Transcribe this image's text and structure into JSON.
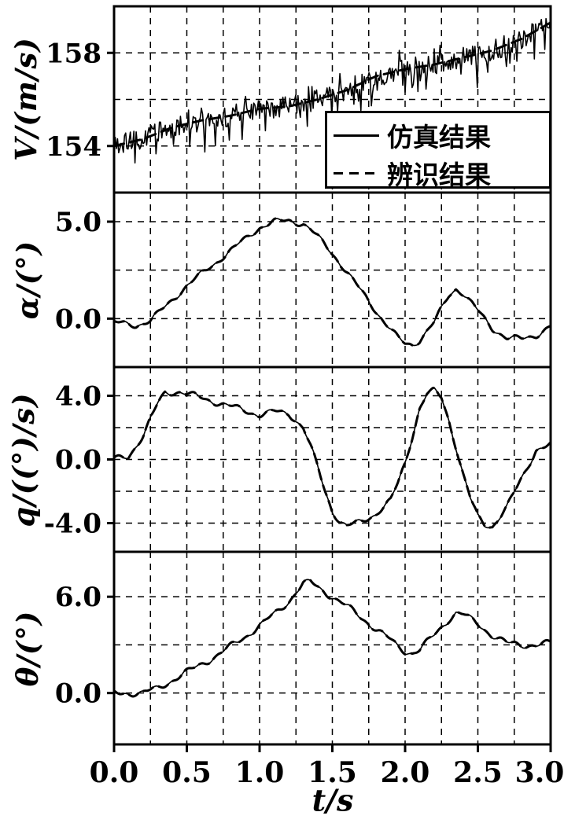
{
  "figure": {
    "xlabel": "t/s",
    "xlim": [
      0,
      3
    ],
    "xticks": [
      0.0,
      0.5,
      1.0,
      1.5,
      2.0,
      2.5,
      3.0
    ],
    "xgrid_step": 0.25,
    "line_color": "#000000",
    "background": "#ffffff",
    "legend": {
      "items": [
        {
          "label": "仿真结果",
          "style": "solid"
        },
        {
          "label": "辨识结果",
          "style": "dashed"
        }
      ]
    }
  },
  "chart_data": [
    {
      "type": "line",
      "ylabel": "V/(m/s)",
      "ylim": [
        152,
        160
      ],
      "yticks": [
        158,
        154
      ],
      "ytick_decimals": 0,
      "ygrid": [
        154,
        156,
        158
      ],
      "points": [
        [
          0,
          154.0
        ],
        [
          0.2,
          154.3
        ],
        [
          0.4,
          154.8
        ],
        [
          0.6,
          155.1
        ],
        [
          0.8,
          155.3
        ],
        [
          1.0,
          155.6
        ],
        [
          1.2,
          155.7
        ],
        [
          1.4,
          156.0
        ],
        [
          1.6,
          156.4
        ],
        [
          1.8,
          157.0
        ],
        [
          2.0,
          157.3
        ],
        [
          2.2,
          157.5
        ],
        [
          2.4,
          157.8
        ],
        [
          2.6,
          158.1
        ],
        [
          2.8,
          158.6
        ],
        [
          3.0,
          159.3
        ]
      ],
      "series": [
        {
          "name": "仿真结果",
          "style": "solid-noisy",
          "noise_amplitude": 0.45
        },
        {
          "name": "辨识结果",
          "style": "dashed"
        }
      ]
    },
    {
      "type": "line",
      "ylabel": "α/(°)",
      "ylim": [
        -2.5,
        6.5
      ],
      "yticks": [
        5.0,
        0.0
      ],
      "ytick_decimals": 1,
      "ygrid": [
        0,
        2.5,
        5
      ],
      "points": [
        [
          0,
          -0.2
        ],
        [
          0.15,
          -0.35
        ],
        [
          0.25,
          -0.1
        ],
        [
          0.35,
          0.6
        ],
        [
          0.5,
          1.7
        ],
        [
          0.6,
          2.3
        ],
        [
          0.7,
          2.9
        ],
        [
          0.8,
          3.5
        ],
        [
          0.9,
          4.1
        ],
        [
          1.0,
          4.7
        ],
        [
          1.1,
          5.0
        ],
        [
          1.2,
          5.05
        ],
        [
          1.3,
          4.9
        ],
        [
          1.35,
          4.6
        ],
        [
          1.45,
          3.8
        ],
        [
          1.55,
          2.9
        ],
        [
          1.65,
          1.9
        ],
        [
          1.75,
          0.9
        ],
        [
          1.85,
          -0.1
        ],
        [
          1.95,
          -1.0
        ],
        [
          2.0,
          -1.3
        ],
        [
          2.05,
          -1.35
        ],
        [
          2.1,
          -1.1
        ],
        [
          2.2,
          -0.2
        ],
        [
          2.3,
          1.2
        ],
        [
          2.35,
          1.55
        ],
        [
          2.4,
          1.3
        ],
        [
          2.5,
          0.4
        ],
        [
          2.6,
          -0.5
        ],
        [
          2.7,
          -1.0
        ],
        [
          2.8,
          -1.05
        ],
        [
          2.9,
          -0.85
        ],
        [
          3.0,
          -0.4
        ]
      ],
      "series": [
        {
          "name": "仿真结果",
          "style": "solid"
        },
        {
          "name": "辨识结果",
          "style": "dashed"
        }
      ]
    },
    {
      "type": "line",
      "ylabel": "q/((°)/s)",
      "ylim": [
        -5.8,
        5.8
      ],
      "yticks": [
        4.0,
        0.0,
        -4.0
      ],
      "ytick_decimals": 1,
      "ygrid": [
        -4,
        -2,
        0,
        2,
        4
      ],
      "points": [
        [
          0,
          0.0
        ],
        [
          0.1,
          0.2
        ],
        [
          0.2,
          1.5
        ],
        [
          0.3,
          3.5
        ],
        [
          0.35,
          4.2
        ],
        [
          0.45,
          4.25
        ],
        [
          0.55,
          4.0
        ],
        [
          0.7,
          3.6
        ],
        [
          0.85,
          3.2
        ],
        [
          1.0,
          2.8
        ],
        [
          1.1,
          3.0
        ],
        [
          1.2,
          2.9
        ],
        [
          1.3,
          2.0
        ],
        [
          1.35,
          0.8
        ],
        [
          1.4,
          -0.5
        ],
        [
          1.45,
          -2.0
        ],
        [
          1.5,
          -3.2
        ],
        [
          1.55,
          -3.9
        ],
        [
          1.6,
          -4.2
        ],
        [
          1.7,
          -3.9
        ],
        [
          1.8,
          -3.4
        ],
        [
          1.9,
          -2.6
        ],
        [
          1.95,
          -1.5
        ],
        [
          2.0,
          -0.2
        ],
        [
          2.05,
          1.5
        ],
        [
          2.1,
          3.2
        ],
        [
          2.15,
          4.1
        ],
        [
          2.2,
          4.3
        ],
        [
          2.25,
          3.9
        ],
        [
          2.3,
          2.5
        ],
        [
          2.35,
          0.8
        ],
        [
          2.4,
          -1.0
        ],
        [
          2.45,
          -2.5
        ],
        [
          2.5,
          -3.6
        ],
        [
          2.55,
          -4.1
        ],
        [
          2.6,
          -4.2
        ],
        [
          2.7,
          -3.0
        ],
        [
          2.8,
          -1.2
        ],
        [
          2.9,
          0.6
        ],
        [
          3.0,
          0.9
        ]
      ],
      "series": [
        {
          "name": "仿真结果",
          "style": "solid"
        },
        {
          "name": "辨识结果",
          "style": "dashed"
        }
      ]
    },
    {
      "type": "line",
      "ylabel": "θ/(°)",
      "ylim": [
        -3.2,
        8.8
      ],
      "yticks": [
        6.0,
        0.0
      ],
      "ytick_decimals": 1,
      "ygrid": [
        0,
        3,
        6
      ],
      "points": [
        [
          0,
          0.0
        ],
        [
          0.2,
          0.0
        ],
        [
          0.3,
          0.3
        ],
        [
          0.4,
          0.8
        ],
        [
          0.5,
          1.3
        ],
        [
          0.6,
          1.8
        ],
        [
          0.7,
          2.3
        ],
        [
          0.8,
          2.9
        ],
        [
          0.9,
          3.5
        ],
        [
          1.0,
          4.2
        ],
        [
          1.1,
          4.9
        ],
        [
          1.2,
          5.7
        ],
        [
          1.25,
          6.3
        ],
        [
          1.3,
          6.8
        ],
        [
          1.35,
          6.9
        ],
        [
          1.4,
          6.6
        ],
        [
          1.5,
          6.0
        ],
        [
          1.6,
          5.4
        ],
        [
          1.7,
          4.7
        ],
        [
          1.8,
          4.0
        ],
        [
          1.9,
          3.3
        ],
        [
          1.95,
          2.9
        ],
        [
          2.0,
          2.6
        ],
        [
          2.05,
          2.5
        ],
        [
          2.1,
          2.7
        ],
        [
          2.2,
          3.6
        ],
        [
          2.3,
          4.6
        ],
        [
          2.35,
          5.0
        ],
        [
          2.4,
          4.9
        ],
        [
          2.5,
          4.3
        ],
        [
          2.6,
          3.6
        ],
        [
          2.7,
          3.1
        ],
        [
          2.8,
          3.0
        ],
        [
          2.9,
          3.0
        ],
        [
          3.0,
          3.1
        ]
      ],
      "series": [
        {
          "name": "仿真结果",
          "style": "solid"
        },
        {
          "name": "辨识结果",
          "style": "dashed"
        }
      ]
    }
  ]
}
